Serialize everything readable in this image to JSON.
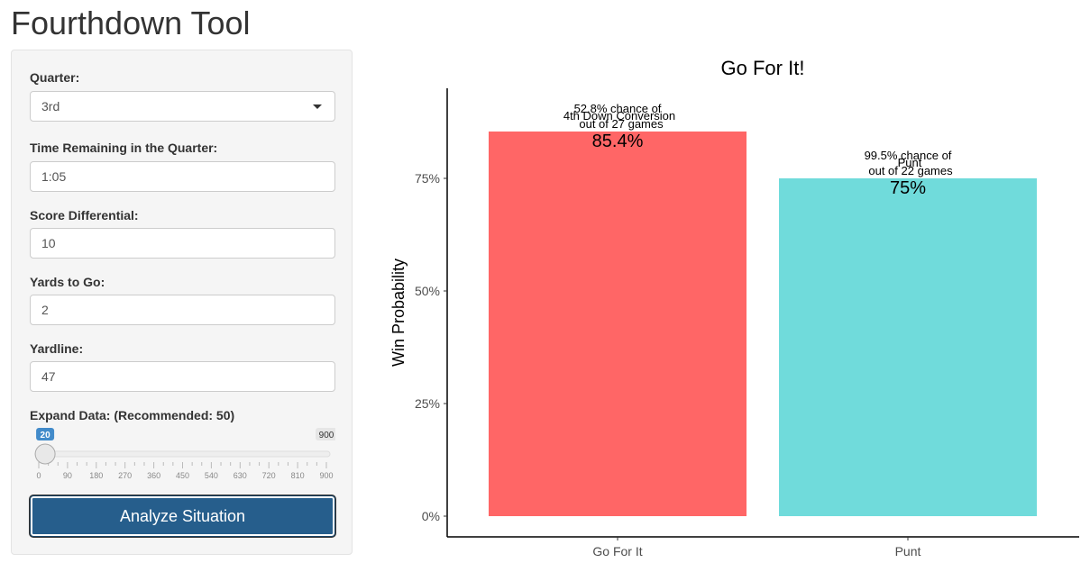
{
  "app": {
    "title": "Fourthdown Tool"
  },
  "form": {
    "quarter": {
      "label": "Quarter:",
      "value": "3rd"
    },
    "time_remaining": {
      "label": "Time Remaining in the Quarter:",
      "value": "1:05"
    },
    "score_differential": {
      "label": "Score Differential:",
      "value": "10"
    },
    "yards_to_go": {
      "label": "Yards to Go:",
      "value": "2"
    },
    "yardline": {
      "label": "Yardline:",
      "value": "47"
    },
    "expand_data": {
      "label": "Expand Data: (Recommended: 50)",
      "value": 20,
      "value_label": "20",
      "min": 0,
      "max": 900,
      "max_label": "900",
      "ticks": [
        "0",
        "90",
        "180",
        "270",
        "360",
        "450",
        "540",
        "630",
        "720",
        "810",
        "900"
      ]
    },
    "submit_label": "Analyze Situation"
  },
  "colors": {
    "go": "#ff6666",
    "punt": "#70dbdb",
    "button": "#265e8c",
    "slider": "#428bca"
  },
  "chart_data": {
    "type": "bar",
    "title": "Go For It!",
    "xlabel": "",
    "ylabel": "Win Probability",
    "categories": [
      "Go For It",
      "Punt"
    ],
    "values": [
      85.4,
      75
    ],
    "value_labels": [
      "85.4%",
      "75%"
    ],
    "ylim": [
      0,
      100
    ],
    "yticks": [
      0,
      25,
      50,
      75
    ],
    "ytick_labels": [
      "0%",
      "25%",
      "50%",
      "75%"
    ],
    "annotations": [
      [
        "52.8% chance of",
        "4th Down Conversion",
        "out of 27 games"
      ],
      [
        "99.5% chance of",
        "Punt",
        "out of 22 games"
      ]
    ]
  }
}
